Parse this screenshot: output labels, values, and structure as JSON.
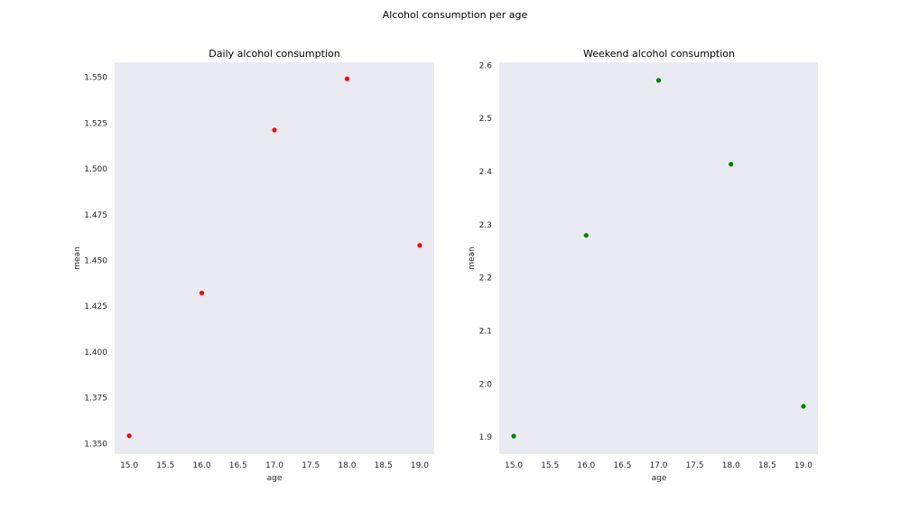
{
  "figure": {
    "suptitle": "Alcohol consumption per age"
  },
  "chart_data": [
    {
      "type": "scatter",
      "title": "Daily alcohol consumption",
      "xlabel": "age",
      "ylabel": "mean",
      "color": "#ff0000",
      "background": "#eaeaf2",
      "grid": false,
      "x": [
        15,
        16,
        17,
        18,
        19
      ],
      "y": [
        1.354,
        1.432,
        1.521,
        1.549,
        1.458
      ],
      "xlim": [
        14.8,
        19.2
      ],
      "ylim": [
        1.344,
        1.558
      ],
      "xticks": [
        15.0,
        15.5,
        16.0,
        16.5,
        17.0,
        17.5,
        18.0,
        18.5,
        19.0
      ],
      "xtick_labels": [
        "15.0",
        "15.5",
        "16.0",
        "16.5",
        "17.0",
        "17.5",
        "18.0",
        "18.5",
        "19.0"
      ],
      "yticks": [
        1.35,
        1.375,
        1.4,
        1.425,
        1.45,
        1.475,
        1.5,
        1.525,
        1.55
      ],
      "ytick_labels": [
        "1.350",
        "1.375",
        "1.400",
        "1.425",
        "1.450",
        "1.475",
        "1.500",
        "1.525",
        "1.550"
      ]
    },
    {
      "type": "scatter",
      "title": "Weekend alcohol consumption",
      "xlabel": "age",
      "ylabel": "mean",
      "color": "#008000",
      "background": "#eaeaf2",
      "grid": false,
      "x": [
        15,
        16,
        17,
        18,
        19
      ],
      "y": [
        1.901,
        2.279,
        2.571,
        2.413,
        1.957
      ],
      "xlim": [
        14.8,
        19.2
      ],
      "ylim": [
        1.867,
        2.605
      ],
      "xticks": [
        15.0,
        15.5,
        16.0,
        16.5,
        17.0,
        17.5,
        18.0,
        18.5,
        19.0
      ],
      "xtick_labels": [
        "15.0",
        "15.5",
        "16.0",
        "16.5",
        "17.0",
        "17.5",
        "18.0",
        "18.5",
        "19.0"
      ],
      "yticks": [
        1.9,
        2.0,
        2.1,
        2.2,
        2.3,
        2.4,
        2.5,
        2.6
      ],
      "ytick_labels": [
        "1.9",
        "2.0",
        "2.1",
        "2.2",
        "2.3",
        "2.4",
        "2.5",
        "2.6"
      ]
    }
  ]
}
